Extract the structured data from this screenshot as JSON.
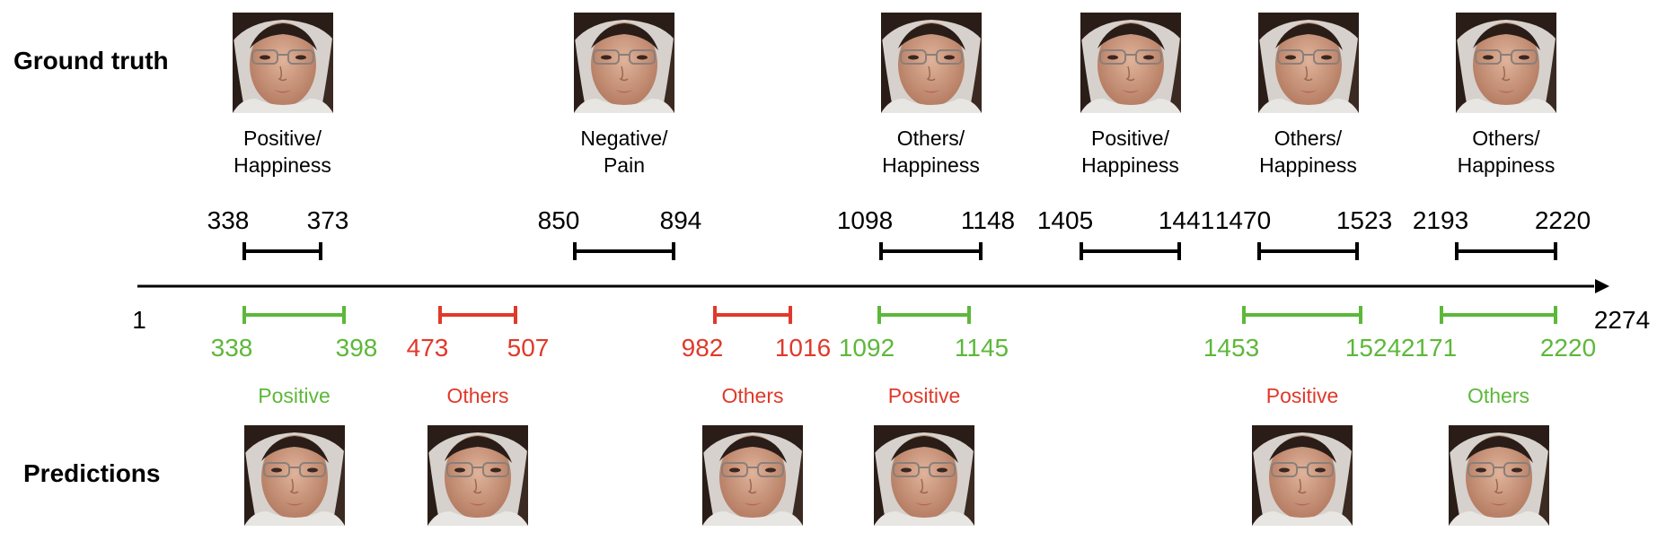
{
  "row_titles": {
    "ground_truth": "Ground truth",
    "predictions": "Predictions"
  },
  "colors": {
    "ground_truth": "#000000",
    "correct": "#5db83a",
    "wrong": "#e0392a",
    "axis": "#000000"
  },
  "timeline": {
    "start": 1,
    "end": 2274
  },
  "ground_truth": [
    {
      "start": 338,
      "end": 373,
      "label_line1": "Positive/",
      "label_line2": "Happiness"
    },
    {
      "start": 850,
      "end": 894,
      "label_line1": "Negative/",
      "label_line2": "Pain"
    },
    {
      "start": 1098,
      "end": 1148,
      "label_line1": "Others/",
      "label_line2": "Happiness"
    },
    {
      "start": 1405,
      "end": 1441,
      "label_line1": "Positive/",
      "label_line2": "Happiness"
    },
    {
      "start": 1470,
      "end": 1523,
      "label_line1": "Others/",
      "label_line2": "Happiness"
    },
    {
      "start": 2193,
      "end": 2220,
      "label_line1": "Others/",
      "label_line2": "Happiness"
    }
  ],
  "predictions": [
    {
      "start": 338,
      "end": 398,
      "range_color": "correct",
      "label": "Positive",
      "label_color": "correct"
    },
    {
      "start": 473,
      "end": 507,
      "range_color": "wrong",
      "label": "Others",
      "label_color": "wrong"
    },
    {
      "start": 982,
      "end": 1016,
      "range_color": "wrong",
      "label": "Others",
      "label_color": "wrong"
    },
    {
      "start": 1092,
      "end": 1145,
      "range_color": "correct",
      "label": "Positive",
      "label_color": "wrong"
    },
    {
      "start": 1453,
      "end": 1524,
      "range_color": "correct",
      "label": "Positive",
      "label_color": "wrong"
    },
    {
      "start": 2171,
      "end": 2220,
      "range_color": "correct",
      "label": "Others",
      "label_color": "correct"
    }
  ]
}
